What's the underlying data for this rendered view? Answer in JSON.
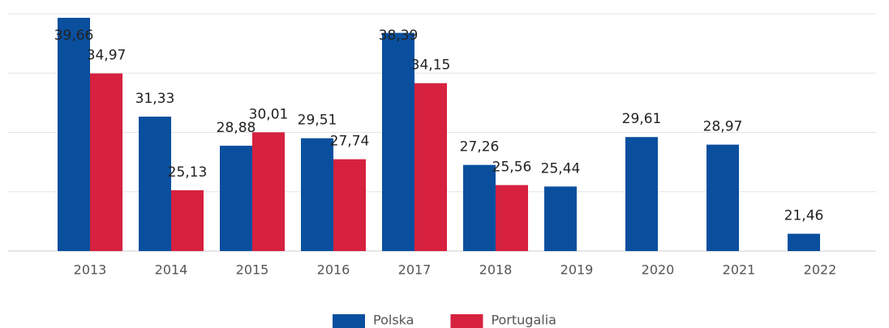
{
  "chart_data": {
    "type": "bar",
    "categories": [
      "2013",
      "2014",
      "2015",
      "2016",
      "2017",
      "2018",
      "2019",
      "2020",
      "2021",
      "2022"
    ],
    "series": [
      {
        "name": "Polska",
        "color": "#0a4f9e",
        "values": [
          39.66,
          31.33,
          28.88,
          29.51,
          38.39,
          27.26,
          25.44,
          29.61,
          28.97,
          21.46
        ],
        "value_labels": [
          "39,66",
          "31,33",
          "28,88",
          "29,51",
          "38,39",
          "27,26",
          "25,44",
          "29,61",
          "28,97",
          "21,46"
        ]
      },
      {
        "name": "Portugalia",
        "color": "#d6213f",
        "values": [
          34.97,
          25.13,
          30.01,
          27.74,
          34.15,
          25.56,
          null,
          null,
          null,
          null
        ],
        "value_labels": [
          "34,97",
          "25,13",
          "30,01",
          "27,74",
          "34,15",
          "25,56",
          null,
          null,
          null,
          null
        ]
      }
    ],
    "ylim": [
      20,
      40
    ],
    "yticks": [
      20,
      25,
      30,
      35,
      40
    ],
    "grid": true
  }
}
